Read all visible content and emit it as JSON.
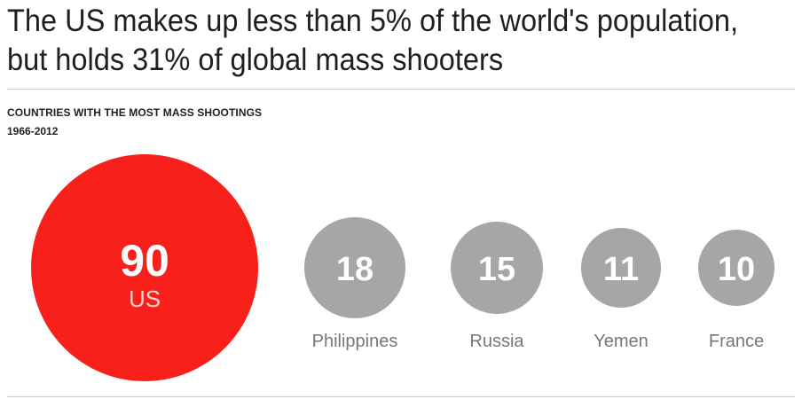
{
  "headline": "The US makes up less than 5% of the world's population, but holds 31% of global mass shooters",
  "chart_data": {
    "type": "bubble",
    "title": "COUNTRIES WITH THE MOST MASS SHOOTINGS",
    "subtitle": "1966-2012",
    "categories": [
      "US",
      "Philippines",
      "Russia",
      "Yemen",
      "France"
    ],
    "values": [
      90,
      18,
      15,
      11,
      10
    ],
    "highlight_color": "#f8201b",
    "default_color": "#a6a6a6"
  }
}
